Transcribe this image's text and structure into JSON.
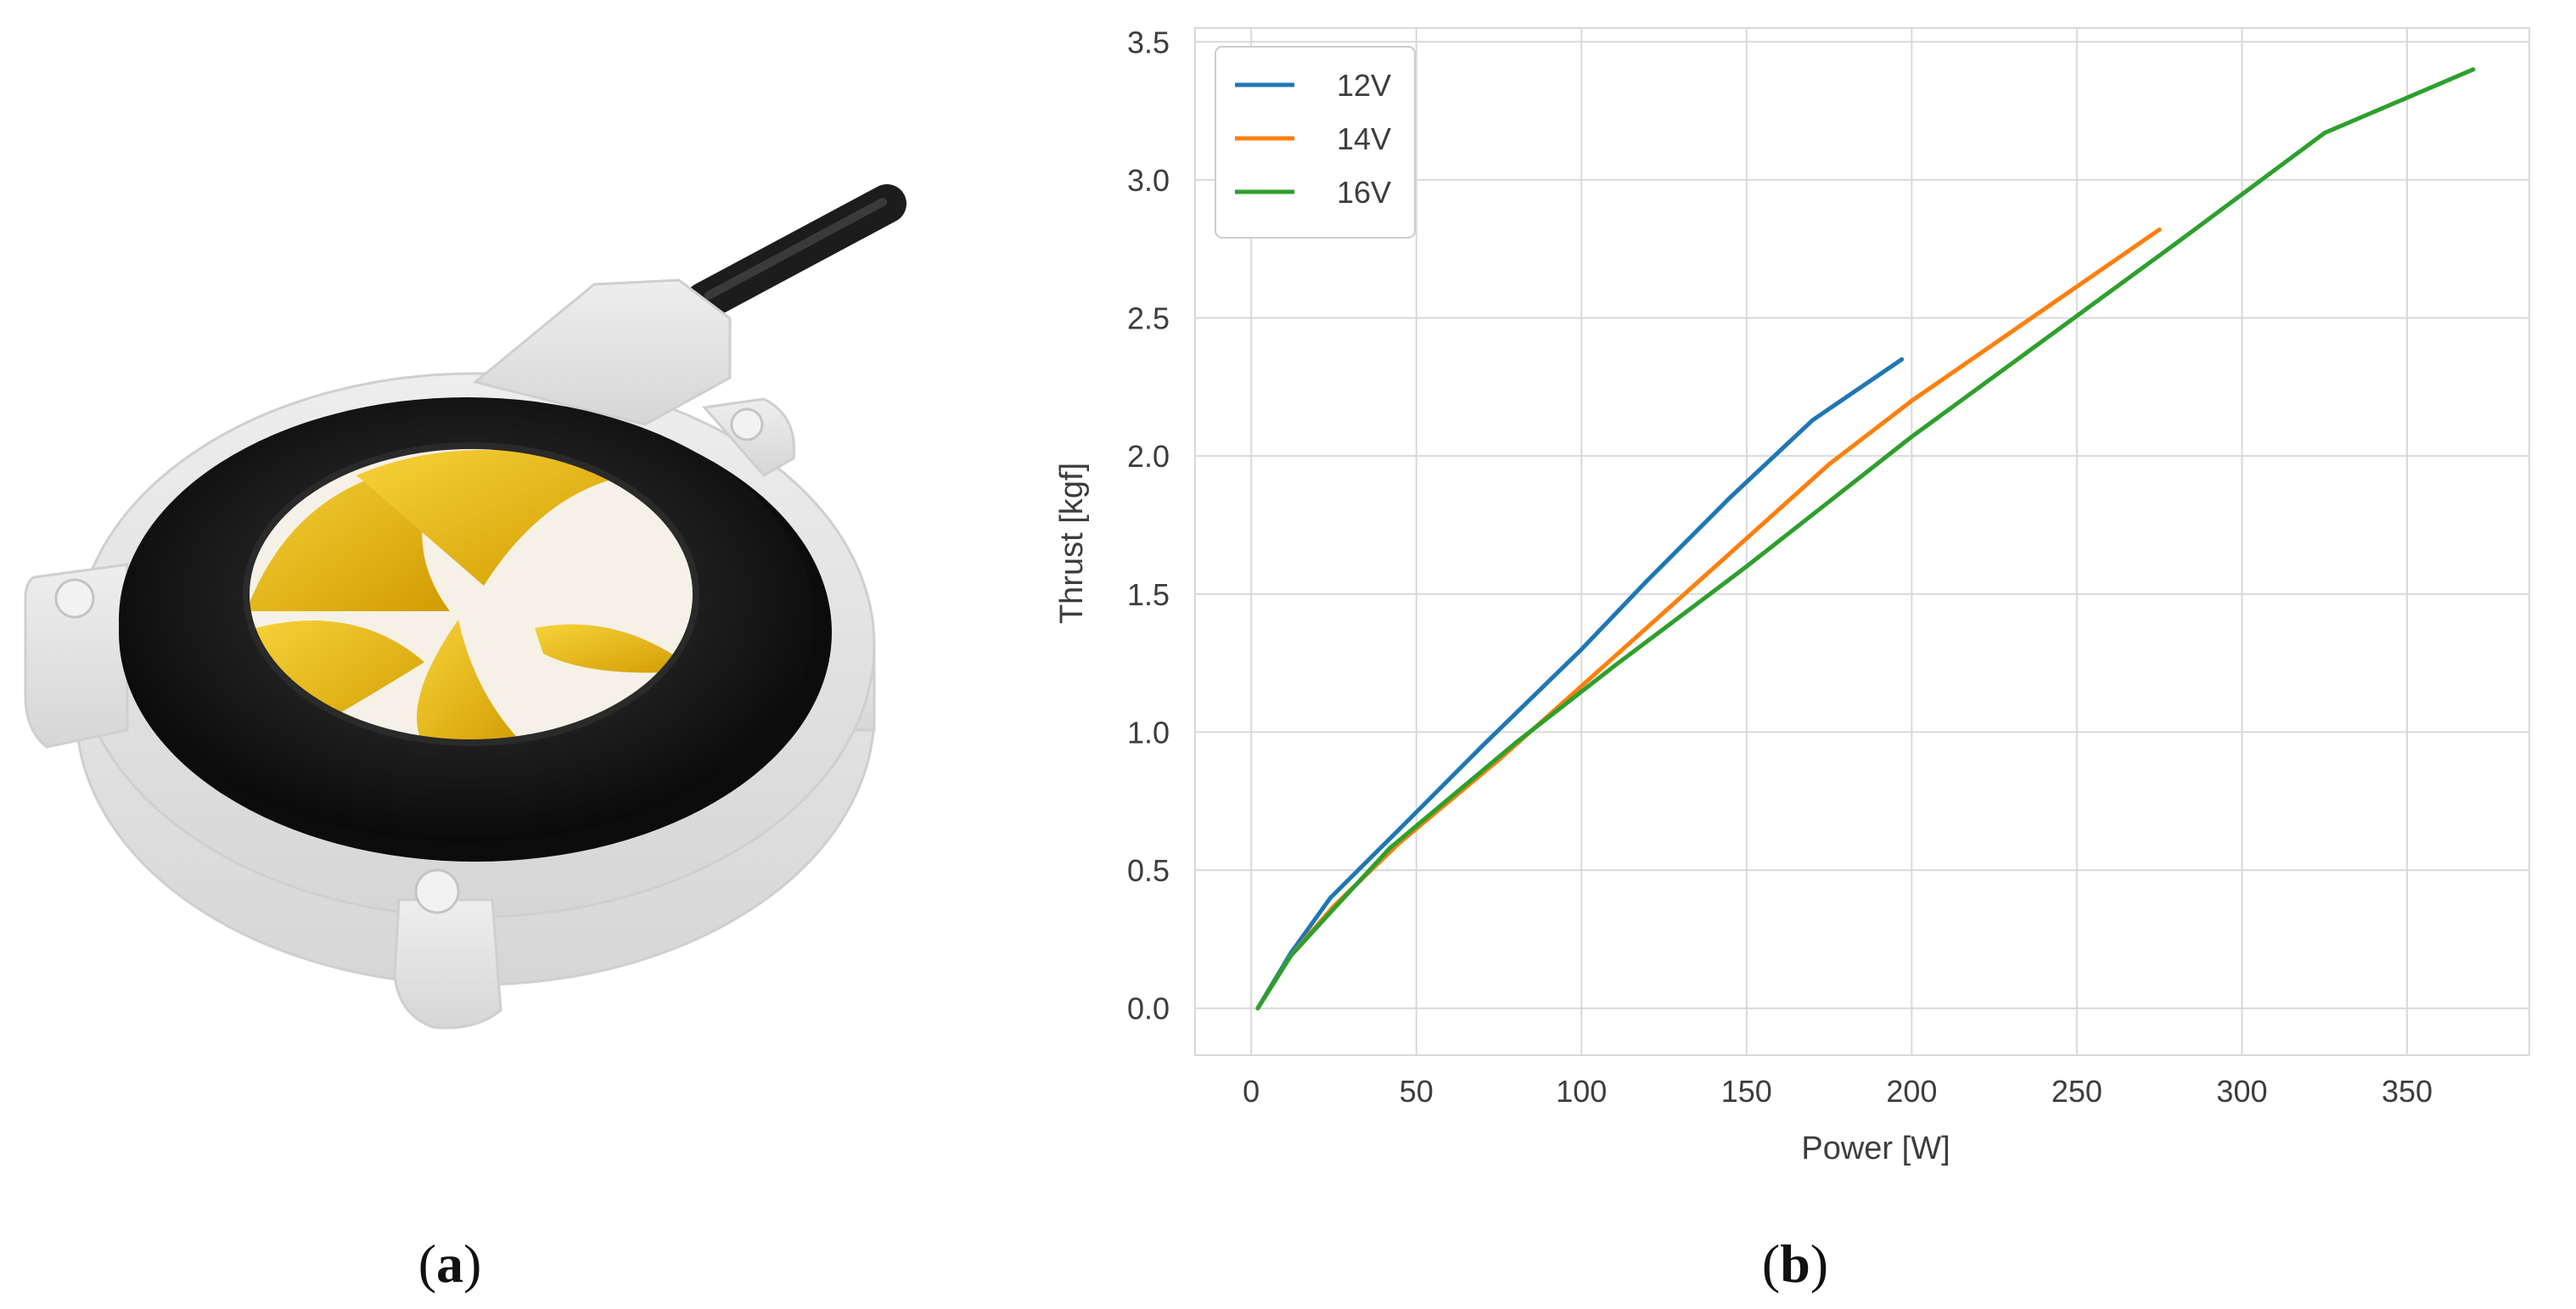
{
  "panels": {
    "left": {
      "label_open": "(",
      "label_letter": "a",
      "label_close": ")"
    },
    "right": {
      "label_open": "(",
      "label_letter": "b",
      "label_close": ")"
    }
  },
  "colors": {
    "housing": "#e4e4e4",
    "ring": "#141414",
    "blades": "#e8b400",
    "cable": "#222222",
    "grid": "#d9d9d9",
    "axis_text": "#3d3d3d"
  },
  "chart_data": {
    "type": "line",
    "title": "",
    "xlabel": "Power [W]",
    "ylabel": "Thrust [kgf]",
    "xlim": [
      -17,
      387
    ],
    "ylim": [
      -0.17,
      3.55
    ],
    "xticks": [
      0,
      50,
      100,
      150,
      200,
      250,
      300,
      350
    ],
    "yticks": [
      0.0,
      0.5,
      1.0,
      1.5,
      2.0,
      2.5,
      3.0,
      3.5
    ],
    "xtick_labels": [
      "0",
      "50",
      "100",
      "150",
      "200",
      "250",
      "300",
      "350"
    ],
    "ytick_labels": [
      "0.0",
      "0.5",
      "1.0",
      "1.5",
      "2.0",
      "2.5",
      "3.0",
      "3.5"
    ],
    "grid": true,
    "legend_position": "top-left",
    "series": [
      {
        "name": "12V",
        "color": "#1f77b4",
        "x": [
          2,
          12,
          24,
          45,
          70,
          100,
          120,
          145,
          170,
          197
        ],
        "y": [
          0.0,
          0.2,
          0.4,
          0.65,
          0.95,
          1.3,
          1.55,
          1.85,
          2.13,
          2.35
        ]
      },
      {
        "name": "14V",
        "color": "#ff7f0e",
        "x": [
          2,
          12,
          25,
          45,
          75,
          105,
          148,
          175,
          200,
          275
        ],
        "y": [
          0.0,
          0.19,
          0.37,
          0.6,
          0.9,
          1.22,
          1.68,
          1.97,
          2.2,
          2.82
        ]
      },
      {
        "name": "16V",
        "color": "#2ca02c",
        "x": [
          2,
          12,
          25,
          42,
          80,
          110,
          150,
          200,
          240,
          280,
          325,
          370
        ],
        "y": [
          0.0,
          0.19,
          0.36,
          0.58,
          0.96,
          1.24,
          1.6,
          2.07,
          2.42,
          2.77,
          3.17,
          3.4
        ]
      }
    ]
  }
}
